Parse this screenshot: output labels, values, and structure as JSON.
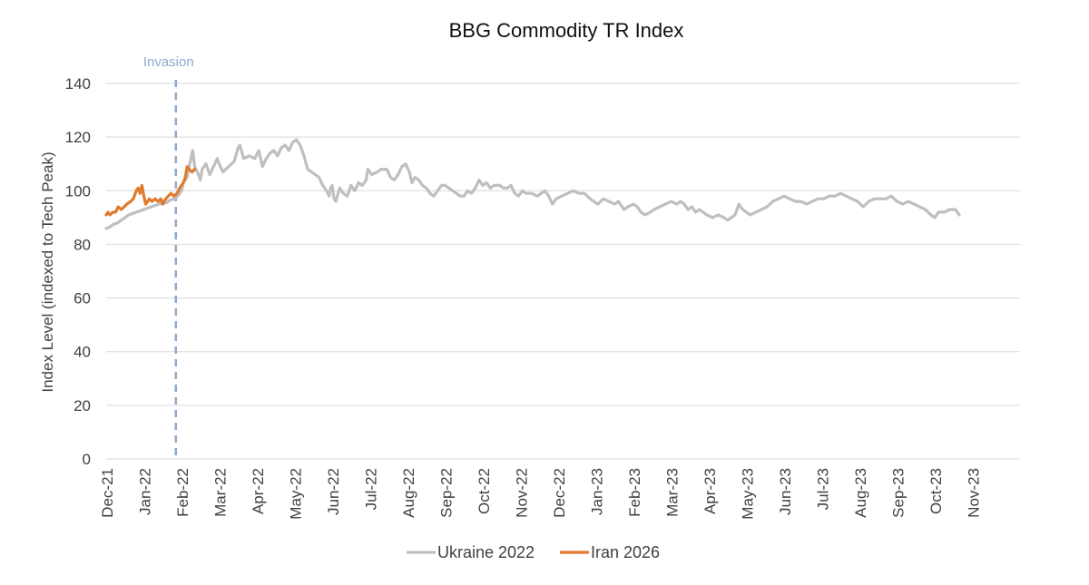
{
  "chart_data": {
    "type": "line",
    "title": "BBG Commodity TR Index",
    "ylabel": "Index Level (indexed to Tech Peak)",
    "xlabel": "",
    "ylim": [
      0,
      140
    ],
    "yticks": [
      0,
      20,
      40,
      60,
      80,
      100,
      120,
      140
    ],
    "grid": true,
    "legend_position": "bottom",
    "x_categories": [
      "Dec-21",
      "Jan-22",
      "Feb-22",
      "Mar-22",
      "Apr-22",
      "May-22",
      "Jun-22",
      "Jul-22",
      "Aug-22",
      "Sep-22",
      "Oct-22",
      "Nov-22",
      "Dec-22",
      "Jan-23",
      "Feb-23",
      "Mar-23",
      "Apr-23",
      "May-23",
      "Jun-23",
      "Jul-23",
      "Aug-23",
      "Sep-23",
      "Oct-23",
      "Nov-23"
    ],
    "annotation": {
      "label": "Invasion",
      "x_month_index": 1.85,
      "color": "#8eaad0"
    },
    "series": [
      {
        "name": "Ukraine 2022",
        "color": "#bfbfbf",
        "points": [
          [
            0.0,
            86
          ],
          [
            0.1,
            86.5
          ],
          [
            0.2,
            87.5
          ],
          [
            0.3,
            88
          ],
          [
            0.4,
            89
          ],
          [
            0.5,
            90
          ],
          [
            0.6,
            91
          ],
          [
            0.7,
            91.5
          ],
          [
            0.8,
            92
          ],
          [
            0.9,
            92.5
          ],
          [
            1.0,
            93
          ],
          [
            1.1,
            93.5
          ],
          [
            1.2,
            94
          ],
          [
            1.3,
            94.5
          ],
          [
            1.4,
            95
          ],
          [
            1.5,
            95.5
          ],
          [
            1.6,
            95.5
          ],
          [
            1.7,
            96.5
          ],
          [
            1.8,
            97
          ],
          [
            1.9,
            98
          ],
          [
            2.0,
            100
          ],
          [
            2.05,
            103
          ],
          [
            2.15,
            105
          ],
          [
            2.22,
            110
          ],
          [
            2.3,
            115
          ],
          [
            2.35,
            109
          ],
          [
            2.45,
            106
          ],
          [
            2.5,
            104
          ],
          [
            2.55,
            108
          ],
          [
            2.65,
            110
          ],
          [
            2.75,
            106
          ],
          [
            2.85,
            109
          ],
          [
            2.95,
            112
          ],
          [
            3.0,
            110
          ],
          [
            3.1,
            107
          ],
          [
            3.25,
            109
          ],
          [
            3.4,
            111
          ],
          [
            3.5,
            116
          ],
          [
            3.55,
            117
          ],
          [
            3.65,
            112
          ],
          [
            3.8,
            113
          ],
          [
            3.95,
            112
          ],
          [
            4.05,
            115
          ],
          [
            4.15,
            109
          ],
          [
            4.25,
            112
          ],
          [
            4.35,
            114
          ],
          [
            4.45,
            115
          ],
          [
            4.55,
            113
          ],
          [
            4.65,
            116
          ],
          [
            4.75,
            117
          ],
          [
            4.85,
            115
          ],
          [
            4.95,
            118
          ],
          [
            5.05,
            119
          ],
          [
            5.15,
            117
          ],
          [
            5.25,
            113
          ],
          [
            5.35,
            108
          ],
          [
            5.45,
            107
          ],
          [
            5.55,
            106
          ],
          [
            5.65,
            105
          ],
          [
            5.75,
            102
          ],
          [
            5.85,
            100
          ],
          [
            5.92,
            98
          ],
          [
            5.96,
            101
          ],
          [
            6.0,
            102
          ],
          [
            6.05,
            97
          ],
          [
            6.1,
            96
          ],
          [
            6.2,
            101
          ],
          [
            6.3,
            99
          ],
          [
            6.4,
            98
          ],
          [
            6.5,
            102
          ],
          [
            6.6,
            100
          ],
          [
            6.7,
            103
          ],
          [
            6.8,
            102
          ],
          [
            6.9,
            104
          ],
          [
            6.95,
            108
          ],
          [
            7.05,
            106
          ],
          [
            7.2,
            107
          ],
          [
            7.3,
            108
          ],
          [
            7.45,
            108
          ],
          [
            7.55,
            105
          ],
          [
            7.65,
            104
          ],
          [
            7.75,
            106
          ],
          [
            7.85,
            109
          ],
          [
            7.95,
            110
          ],
          [
            8.05,
            107
          ],
          [
            8.12,
            103
          ],
          [
            8.2,
            105
          ],
          [
            8.3,
            104
          ],
          [
            8.4,
            102
          ],
          [
            8.5,
            101
          ],
          [
            8.6,
            99
          ],
          [
            8.7,
            98
          ],
          [
            8.8,
            100
          ],
          [
            8.9,
            102
          ],
          [
            9.0,
            102
          ],
          [
            9.1,
            101
          ],
          [
            9.2,
            100
          ],
          [
            9.3,
            99
          ],
          [
            9.4,
            98
          ],
          [
            9.5,
            98
          ],
          [
            9.6,
            100
          ],
          [
            9.7,
            99
          ],
          [
            9.8,
            101
          ],
          [
            9.9,
            104
          ],
          [
            10.0,
            102
          ],
          [
            10.1,
            103
          ],
          [
            10.2,
            101
          ],
          [
            10.3,
            102
          ],
          [
            10.45,
            102
          ],
          [
            10.55,
            101
          ],
          [
            10.65,
            101
          ],
          [
            10.75,
            102
          ],
          [
            10.85,
            99
          ],
          [
            10.95,
            98
          ],
          [
            11.05,
            100
          ],
          [
            11.15,
            99
          ],
          [
            11.3,
            99
          ],
          [
            11.45,
            98
          ],
          [
            11.55,
            99
          ],
          [
            11.65,
            100
          ],
          [
            11.75,
            98
          ],
          [
            11.85,
            95
          ],
          [
            11.95,
            97
          ],
          [
            12.1,
            98
          ],
          [
            12.25,
            99
          ],
          [
            12.4,
            100
          ],
          [
            12.55,
            99
          ],
          [
            12.7,
            99
          ],
          [
            12.85,
            97
          ],
          [
            12.95,
            96
          ],
          [
            13.05,
            95
          ],
          [
            13.2,
            97
          ],
          [
            13.35,
            96
          ],
          [
            13.5,
            95
          ],
          [
            13.6,
            96
          ],
          [
            13.75,
            93
          ],
          [
            13.85,
            94
          ],
          [
            14.0,
            95
          ],
          [
            14.1,
            94
          ],
          [
            14.2,
            92
          ],
          [
            14.3,
            91
          ],
          [
            14.45,
            92
          ],
          [
            14.55,
            93
          ],
          [
            14.7,
            94
          ],
          [
            14.85,
            95
          ],
          [
            15.0,
            96
          ],
          [
            15.15,
            95
          ],
          [
            15.25,
            96
          ],
          [
            15.35,
            95
          ],
          [
            15.45,
            93
          ],
          [
            15.55,
            94
          ],
          [
            15.65,
            92
          ],
          [
            15.75,
            93
          ],
          [
            15.85,
            92
          ],
          [
            15.95,
            91
          ],
          [
            16.1,
            90
          ],
          [
            16.25,
            91
          ],
          [
            16.4,
            90
          ],
          [
            16.5,
            89
          ],
          [
            16.6,
            90
          ],
          [
            16.7,
            91
          ],
          [
            16.8,
            95
          ],
          [
            16.9,
            93
          ],
          [
            17.0,
            92
          ],
          [
            17.1,
            91
          ],
          [
            17.25,
            92
          ],
          [
            17.4,
            93
          ],
          [
            17.55,
            94
          ],
          [
            17.7,
            96
          ],
          [
            17.85,
            97
          ],
          [
            18.0,
            98
          ],
          [
            18.15,
            97
          ],
          [
            18.3,
            96
          ],
          [
            18.45,
            96
          ],
          [
            18.6,
            95
          ],
          [
            18.75,
            96
          ],
          [
            18.9,
            97
          ],
          [
            19.05,
            97
          ],
          [
            19.2,
            98
          ],
          [
            19.35,
            98
          ],
          [
            19.5,
            99
          ],
          [
            19.65,
            98
          ],
          [
            19.8,
            97
          ],
          [
            19.95,
            96
          ],
          [
            20.1,
            94
          ],
          [
            20.25,
            96
          ],
          [
            20.4,
            97
          ],
          [
            20.55,
            97
          ],
          [
            20.7,
            97
          ],
          [
            20.85,
            98
          ],
          [
            21.0,
            96
          ],
          [
            21.15,
            95
          ],
          [
            21.3,
            96
          ],
          [
            21.45,
            95
          ],
          [
            21.6,
            94
          ],
          [
            21.75,
            93
          ],
          [
            21.9,
            91
          ],
          [
            22.0,
            90
          ],
          [
            22.1,
            92
          ],
          [
            22.25,
            92
          ],
          [
            22.4,
            93
          ],
          [
            22.55,
            93
          ],
          [
            22.65,
            91
          ]
        ]
      },
      {
        "name": "Iran 2026",
        "color": "#e07a2e",
        "points": [
          [
            0.0,
            91
          ],
          [
            0.05,
            92
          ],
          [
            0.1,
            91
          ],
          [
            0.18,
            92
          ],
          [
            0.25,
            92
          ],
          [
            0.32,
            94
          ],
          [
            0.4,
            93
          ],
          [
            0.48,
            94
          ],
          [
            0.55,
            95
          ],
          [
            0.65,
            96
          ],
          [
            0.72,
            97
          ],
          [
            0.8,
            100
          ],
          [
            0.85,
            101
          ],
          [
            0.9,
            99
          ],
          [
            0.95,
            102
          ],
          [
            1.0,
            98
          ],
          [
            1.05,
            95
          ],
          [
            1.1,
            96
          ],
          [
            1.15,
            97
          ],
          [
            1.22,
            96
          ],
          [
            1.3,
            97
          ],
          [
            1.38,
            96
          ],
          [
            1.45,
            97
          ],
          [
            1.5,
            95
          ],
          [
            1.58,
            97
          ],
          [
            1.65,
            98
          ],
          [
            1.72,
            99
          ],
          [
            1.8,
            98
          ],
          [
            1.88,
            99
          ],
          [
            1.95,
            101
          ],
          [
            2.0,
            102
          ],
          [
            2.05,
            103
          ],
          [
            2.1,
            105
          ],
          [
            2.15,
            109
          ],
          [
            2.2,
            108
          ],
          [
            2.28,
            107
          ],
          [
            2.35,
            108
          ]
        ]
      }
    ]
  }
}
